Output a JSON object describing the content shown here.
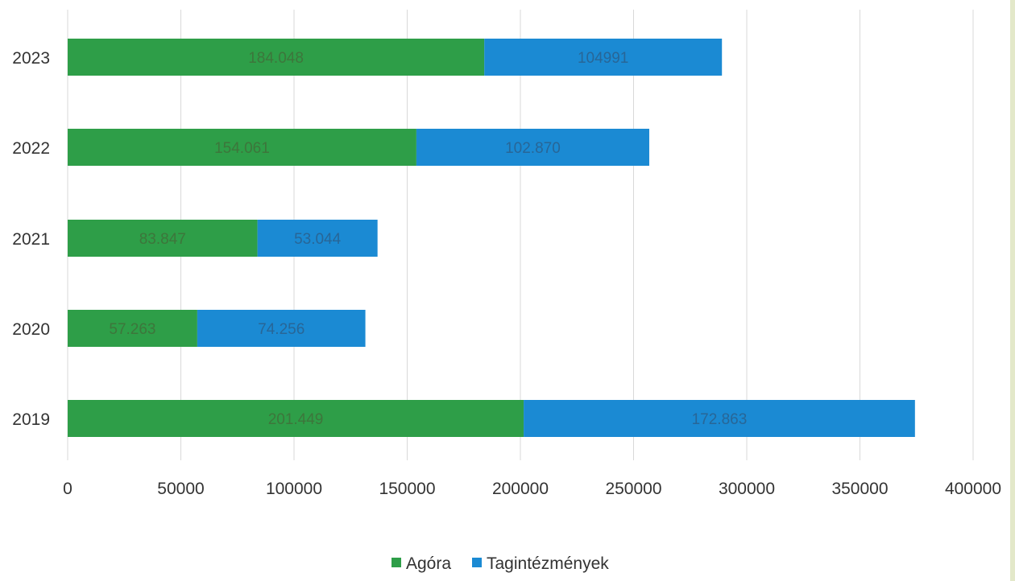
{
  "chart_data": {
    "type": "bar",
    "orientation": "horizontal",
    "stacked": true,
    "categories": [
      "2019",
      "2020",
      "2021",
      "2022",
      "2023"
    ],
    "series": [
      {
        "name": "Agóra",
        "color": "#2e9e48",
        "values": [
          201449,
          57263,
          83847,
          154061,
          184048
        ],
        "labels": [
          "201.449",
          "57.263",
          "83.847",
          "154.061",
          "184.048"
        ]
      },
      {
        "name": "Tagintézmények",
        "color": "#1b8ad3",
        "values": [
          172863,
          74256,
          53044,
          102870,
          104991
        ],
        "labels": [
          "172.863",
          "74.256",
          "53.044",
          "102.870",
          "104991"
        ]
      }
    ],
    "x_ticks": [
      "0",
      "50000",
      "100000",
      "150000",
      "200000",
      "250000",
      "300000",
      "350000",
      "400000"
    ],
    "xlim": [
      0,
      400000
    ],
    "grid": true,
    "legend_position": "bottom-center",
    "title": "",
    "xlabel": "",
    "ylabel": ""
  }
}
